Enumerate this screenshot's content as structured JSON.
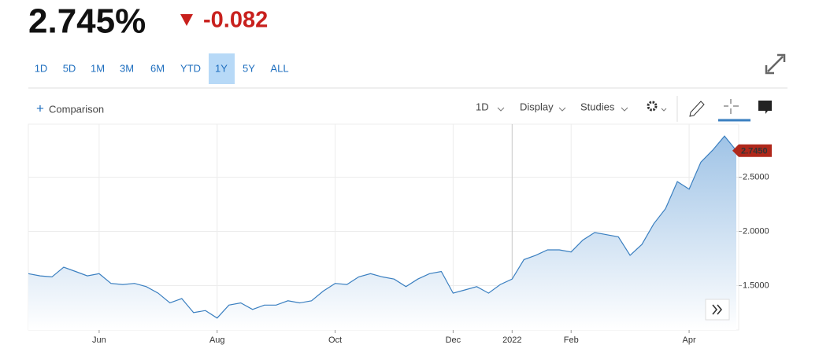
{
  "header": {
    "price": "2.745%",
    "change": "-0.082"
  },
  "ranges": [
    "1D",
    "5D",
    "1M",
    "3M",
    "6M",
    "YTD",
    "1Y",
    "5Y",
    "ALL"
  ],
  "active_range_index": 6,
  "toolbar": {
    "comparison": "Comparison",
    "interval": "1D",
    "display": "Display",
    "studies": "Studies"
  },
  "chart_data": {
    "type": "area",
    "categories": [
      null,
      null,
      null,
      null,
      null,
      null,
      "Jun",
      null,
      null,
      null,
      null,
      null,
      null,
      null,
      null,
      null,
      "Aug",
      null,
      null,
      null,
      null,
      null,
      null,
      null,
      null,
      null,
      "Oct",
      null,
      null,
      null,
      null,
      null,
      null,
      null,
      null,
      null,
      "Dec",
      null,
      null,
      null,
      null,
      "2022",
      null,
      null,
      null,
      null,
      "Feb",
      null,
      null,
      null,
      null,
      null,
      null,
      null,
      null,
      null,
      "Apr",
      null,
      null,
      null,
      null
    ],
    "series": [
      {
        "color": "#3a7fc0",
        "values": [
          1.61,
          1.59,
          1.58,
          1.67,
          1.63,
          1.59,
          1.61,
          1.52,
          1.51,
          1.52,
          1.49,
          1.43,
          1.34,
          1.38,
          1.25,
          1.27,
          1.2,
          1.32,
          1.34,
          1.28,
          1.32,
          1.32,
          1.36,
          1.34,
          1.36,
          1.45,
          1.52,
          1.51,
          1.58,
          1.61,
          1.58,
          1.56,
          1.49,
          1.56,
          1.61,
          1.63,
          1.43,
          1.46,
          1.49,
          1.43,
          1.51,
          1.56,
          1.74,
          1.78,
          1.83,
          1.83,
          1.81,
          1.92,
          1.99,
          1.97,
          1.95,
          1.78,
          1.88,
          2.07,
          2.21,
          2.46,
          2.39,
          2.64,
          2.75,
          2.88,
          2.745
        ]
      }
    ],
    "last_label": {
      "value": 2.745,
      "label": "2.7450"
    },
    "ylim": [
      1.09,
      2.99
    ],
    "yticks": [
      {
        "value": 1.5,
        "label": "1.5000"
      },
      {
        "value": 2,
        "label": "2.0000"
      },
      {
        "value": 2.5,
        "label": "2.5000"
      }
    ],
    "grid": true
  }
}
